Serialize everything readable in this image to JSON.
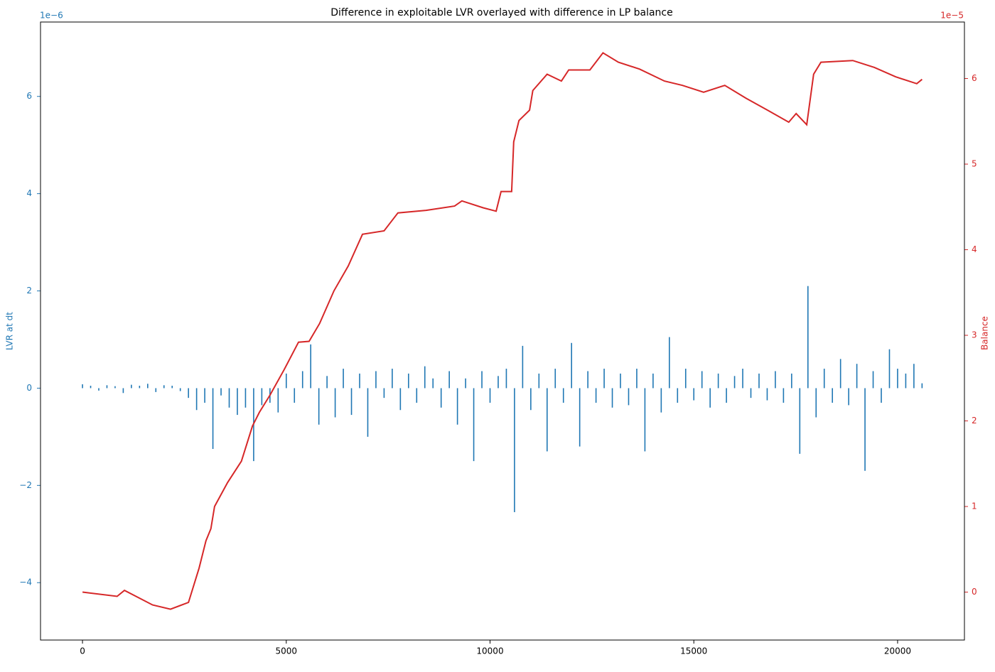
{
  "chart_data": {
    "type": "bar_line",
    "title": "Difference in exploitable LVR overlayed with difference in LP balance",
    "y_label": "LVR at dt",
    "y2_label": "Balance",
    "y_offset": "1e−6",
    "y2_offset": "1e−5",
    "xlim": [
      -1030,
      21640
    ],
    "xticks": [
      0,
      5000,
      10000,
      15000,
      20000
    ],
    "ylim": [
      -5.18,
      7.53
    ],
    "yticks": [
      {
        "value": -4,
        "label": "−4"
      },
      {
        "value": -2,
        "label": "−2"
      },
      0,
      2,
      4,
      6
    ],
    "y2lim": [
      -0.56,
      6.66
    ],
    "y2ticks": [
      0,
      1,
      2,
      3,
      4,
      5,
      6
    ],
    "series": [
      {
        "name": "LVR at dt",
        "type": "bar",
        "color": "#1f77b4",
        "x": [
          0,
          200,
          400,
          600,
          800,
          1000,
          1200,
          1400,
          1600,
          1800,
          2000,
          2200,
          2400,
          2600,
          2800,
          3000,
          3200,
          3400,
          3600,
          3800,
          4000,
          4200,
          4400,
          4600,
          4800,
          5000,
          5200,
          5400,
          5600,
          5800,
          6000,
          6200,
          6400,
          6600,
          6800,
          7000,
          7200,
          7400,
          7600,
          7800,
          8000,
          8200,
          8400,
          8600,
          8800,
          9000,
          9200,
          9400,
          9600,
          9800,
          10000,
          10200,
          10400,
          10600,
          10800,
          11000,
          11200,
          11400,
          11600,
          11800,
          12000,
          12200,
          12400,
          12600,
          12800,
          13000,
          13200,
          13400,
          13600,
          13800,
          14000,
          14200,
          14400,
          14600,
          14800,
          15000,
          15200,
          15400,
          15600,
          15800,
          16000,
          16200,
          16400,
          16600,
          16800,
          17000,
          17200,
          17400,
          17600,
          17800,
          18000,
          18200,
          18400,
          18600,
          18800,
          19000,
          19200,
          19400,
          19600,
          19800,
          20000,
          20200,
          20400,
          20600
        ],
        "values": [
          0.08,
          0.05,
          -0.05,
          0.06,
          0.04,
          -0.1,
          0.07,
          0.05,
          0.09,
          -0.08,
          0.06,
          0.05,
          -0.06,
          -0.2,
          -0.45,
          -0.3,
          -1.25,
          -0.15,
          -0.4,
          -0.55,
          -0.4,
          -1.5,
          -0.35,
          -0.3,
          -0.5,
          0.3,
          -0.3,
          0.35,
          0.9,
          -0.75,
          0.25,
          -0.6,
          0.4,
          -0.55,
          0.3,
          -1.0,
          0.35,
          -0.2,
          0.4,
          -0.45,
          0.3,
          -0.3,
          0.45,
          0.2,
          -0.4,
          0.35,
          -0.75,
          0.2,
          -1.5,
          0.35,
          -0.3,
          0.25,
          0.4,
          -2.55,
          0.87,
          -0.45,
          0.3,
          -1.3,
          0.4,
          -0.3,
          0.93,
          -1.2,
          0.35,
          -0.3,
          0.4,
          -0.4,
          0.3,
          -0.35,
          0.4,
          -1.3,
          0.3,
          -0.5,
          1.05,
          -0.3,
          0.4,
          -0.25,
          0.35,
          -0.4,
          0.3,
          -0.3,
          0.25,
          0.4,
          -0.2,
          0.3,
          -0.25,
          0.35,
          -0.3,
          0.3,
          -1.35,
          2.1,
          -0.6,
          0.4,
          -0.3,
          0.6,
          -0.35,
          0.5,
          -1.7,
          0.35,
          -0.3,
          0.8,
          0.4,
          0.3,
          0.5,
          0.1
        ]
      },
      {
        "name": "Balance",
        "type": "line",
        "axis": "y2",
        "color": "#d62728",
        "x": [
          0,
          850,
          1030,
          1720,
          2160,
          2600,
          2860,
          3030,
          3150,
          3240,
          3560,
          3900,
          4170,
          4340,
          4600,
          4950,
          5300,
          5560,
          5820,
          6170,
          6520,
          6870,
          7400,
          7740,
          8430,
          9130,
          9310,
          9830,
          10150,
          10270,
          10530,
          10580,
          10710,
          10970,
          11050,
          11400,
          11750,
          11930,
          12450,
          12770,
          13150,
          13670,
          14280,
          14720,
          15240,
          15760,
          16280,
          16810,
          17330,
          17510,
          17770,
          17940,
          18120,
          18900,
          19430,
          19950,
          20470,
          20600
        ],
        "values": [
          0.0,
          -0.05,
          0.02,
          -0.15,
          -0.2,
          -0.12,
          0.28,
          0.6,
          0.74,
          1.0,
          1.28,
          1.53,
          1.94,
          2.1,
          2.3,
          2.6,
          2.92,
          2.93,
          3.14,
          3.52,
          3.81,
          4.18,
          4.22,
          4.43,
          4.46,
          4.51,
          4.57,
          4.49,
          4.45,
          4.68,
          4.68,
          5.26,
          5.51,
          5.63,
          5.86,
          6.05,
          5.97,
          6.1,
          6.1,
          6.3,
          6.19,
          6.11,
          5.97,
          5.92,
          5.84,
          5.92,
          5.77,
          5.63,
          5.49,
          5.59,
          5.46,
          6.05,
          6.19,
          6.21,
          6.13,
          6.02,
          5.94,
          5.99
        ]
      }
    ]
  }
}
